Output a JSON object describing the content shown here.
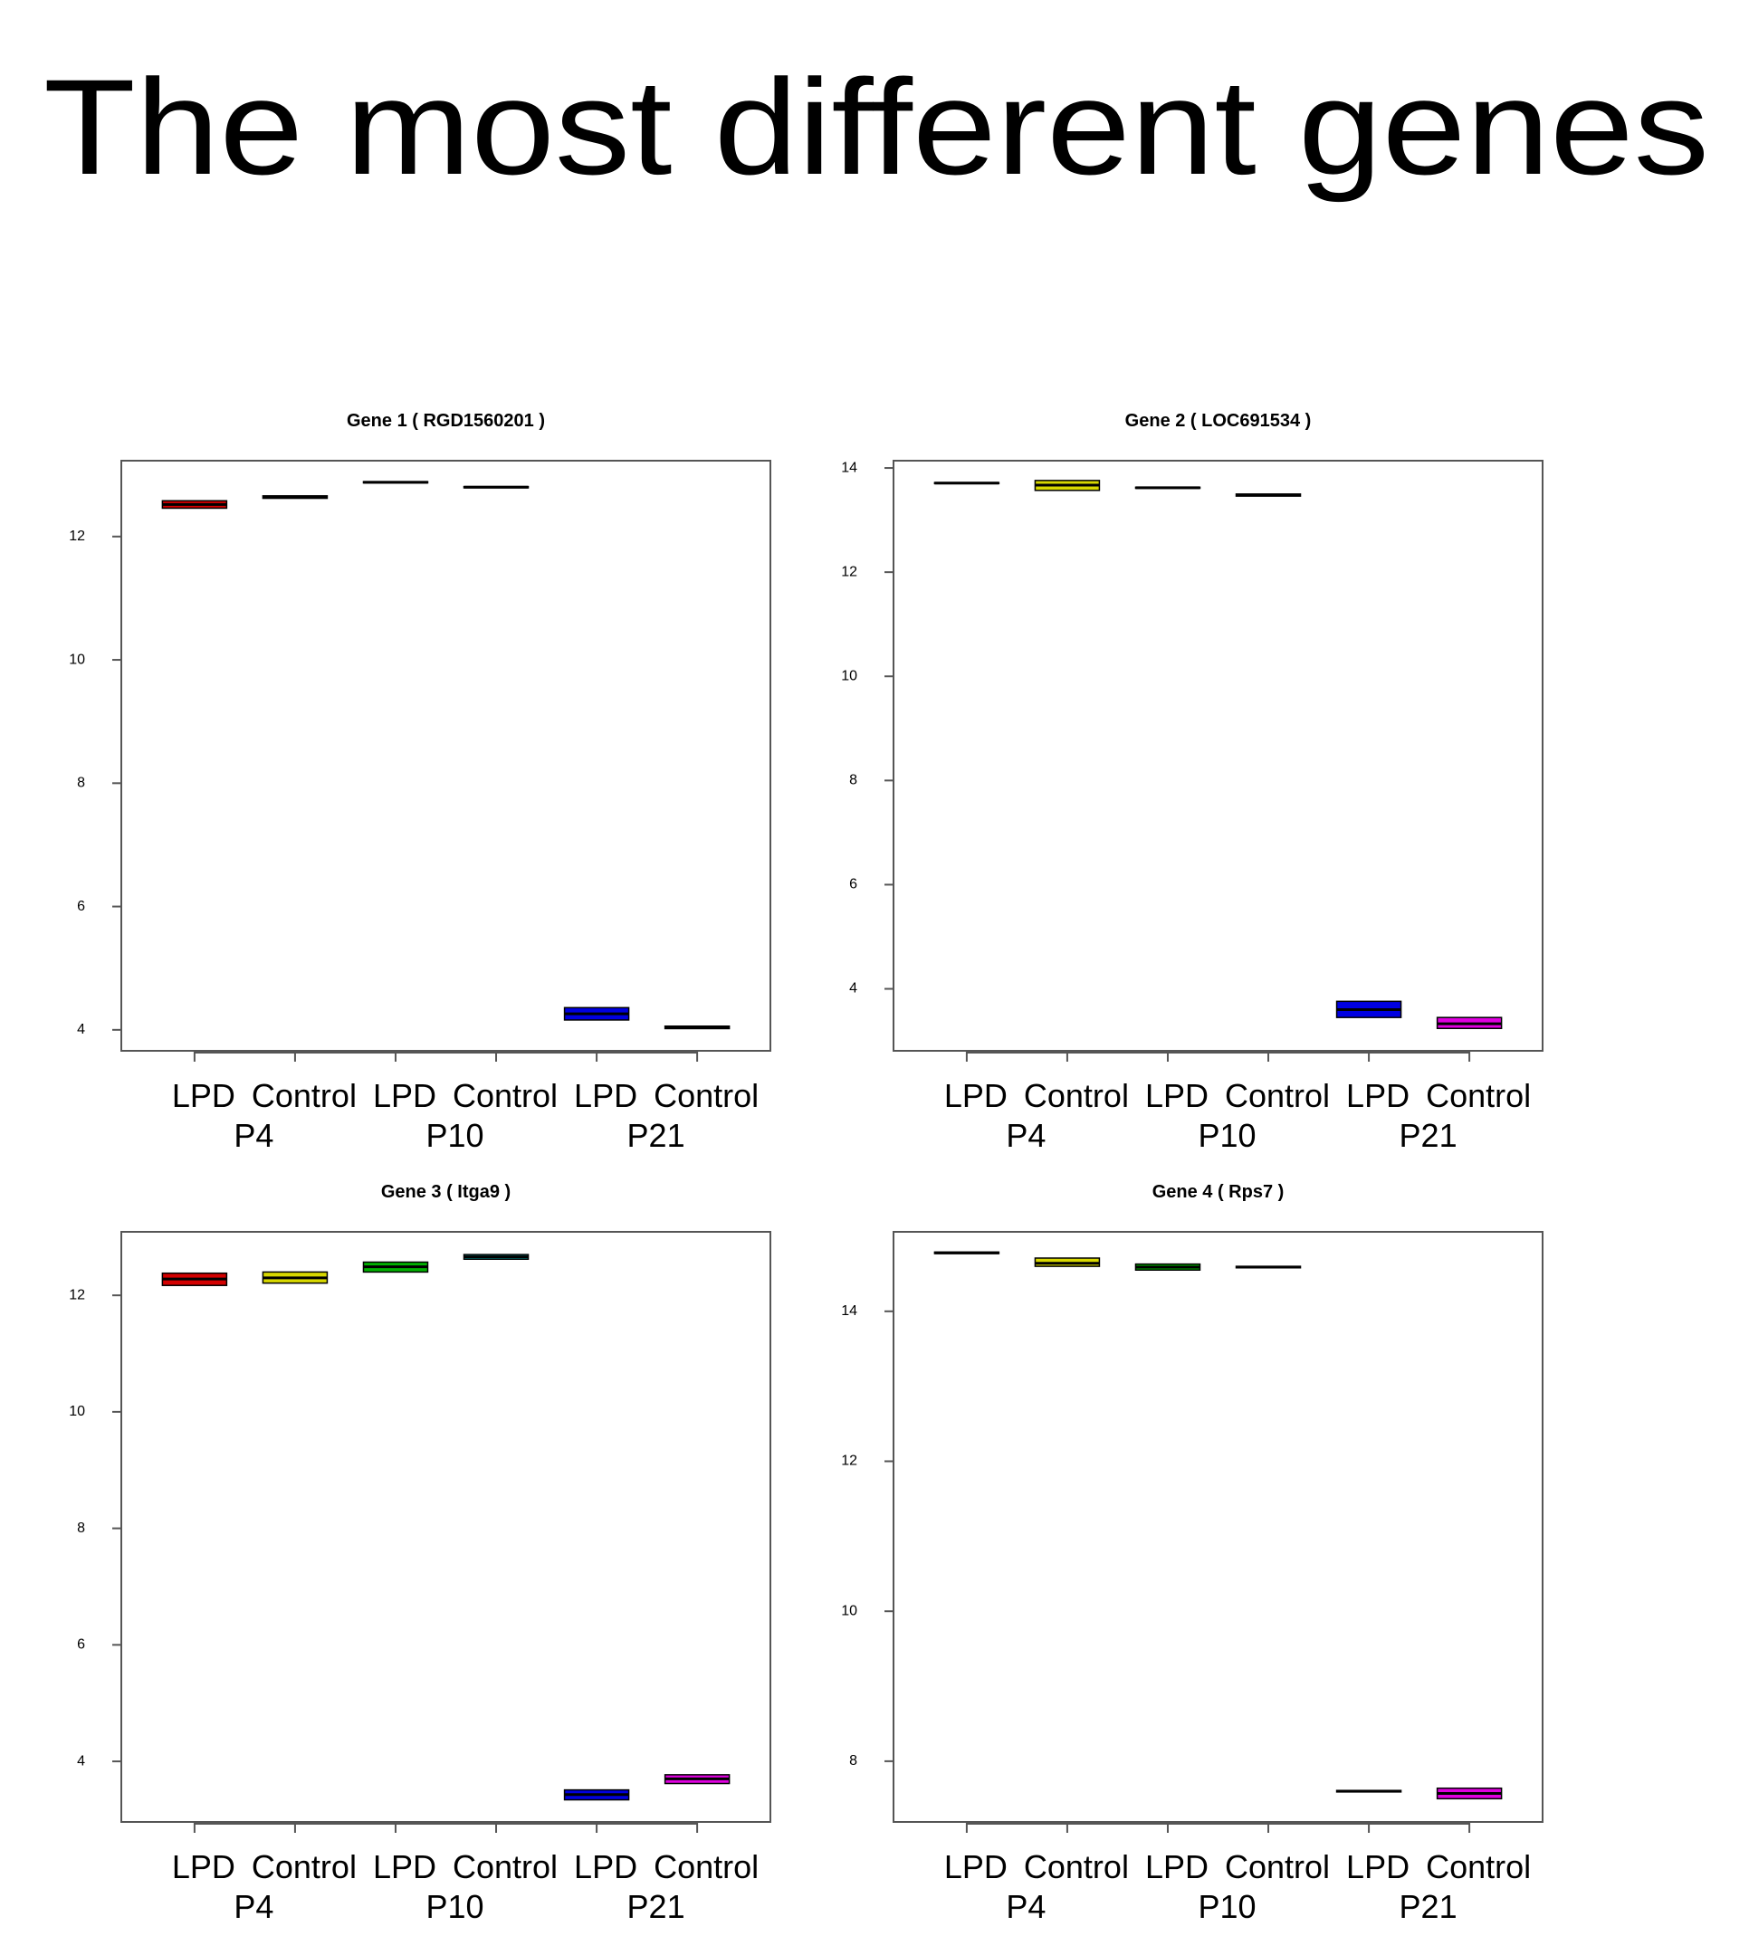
{
  "title": "The most different genes",
  "chart_data": [
    {
      "type": "box",
      "title": "Gene 1 ( RGD1560201 )",
      "categories": [
        "LPD",
        "Control",
        "LPD",
        "Control",
        "LPD",
        "Control"
      ],
      "groups": [
        "P4",
        "P10",
        "P21"
      ],
      "q1": [
        12.46,
        12.62,
        12.87,
        12.79,
        4.16,
        4.02
      ],
      "median": [
        12.52,
        12.64,
        12.88,
        12.8,
        4.26,
        4.04
      ],
      "q3": [
        12.58,
        12.66,
        12.89,
        12.81,
        4.36,
        4.06
      ],
      "colors": [
        "#d40000",
        "#d8d800",
        "#00b000",
        "#00c8c8",
        "#0000e0",
        "#e000e0"
      ],
      "ylim": [
        3.66,
        13.23
      ],
      "yticks": [
        4,
        6,
        8,
        10,
        12
      ]
    },
    {
      "type": "box",
      "title": "Gene 2 ( LOC691534 )",
      "categories": [
        "LPD",
        "Control",
        "LPD",
        "Control",
        "LPD",
        "Control"
      ],
      "groups": [
        "P4",
        "P10",
        "P21"
      ],
      "q1": [
        13.7,
        13.57,
        13.61,
        13.46,
        3.45,
        3.24
      ],
      "median": [
        13.71,
        13.67,
        13.62,
        13.48,
        3.6,
        3.33
      ],
      "q3": [
        13.72,
        13.76,
        13.63,
        13.5,
        3.76,
        3.45
      ],
      "colors": [
        "#d40000",
        "#d8d800",
        "#00b000",
        "#00c8c8",
        "#0000e0",
        "#e000e0"
      ],
      "ylim": [
        2.81,
        14.14
      ],
      "yticks": [
        4,
        6,
        8,
        10,
        12,
        14
      ]
    },
    {
      "type": "box",
      "title": "Gene 3 ( Itga9 )",
      "categories": [
        "LPD",
        "Control",
        "LPD",
        "Control",
        "LPD",
        "Control"
      ],
      "groups": [
        "P4",
        "P10",
        "P21"
      ],
      "q1": [
        12.17,
        12.21,
        12.4,
        12.62,
        3.34,
        3.62
      ],
      "median": [
        12.28,
        12.3,
        12.49,
        12.66,
        3.43,
        3.7
      ],
      "q3": [
        12.38,
        12.4,
        12.57,
        12.7,
        3.51,
        3.77
      ],
      "colors": [
        "#d40000",
        "#d8d800",
        "#00b000",
        "#00c8c8",
        "#0000e0",
        "#e000e0"
      ],
      "ylim": [
        2.96,
        13.09
      ],
      "yticks": [
        4,
        6,
        8,
        10,
        12
      ]
    },
    {
      "type": "box",
      "title": "Gene 4 ( Rps7 )",
      "categories": [
        "LPD",
        "Control",
        "LPD",
        "Control",
        "LPD",
        "Control"
      ],
      "groups": [
        "P4",
        "P10",
        "P21"
      ],
      "q1": [
        14.77,
        14.6,
        14.55,
        14.58,
        7.59,
        7.5
      ],
      "median": [
        14.78,
        14.64,
        14.59,
        14.59,
        7.6,
        7.57
      ],
      "q3": [
        14.79,
        14.71,
        14.63,
        14.6,
        7.61,
        7.64
      ],
      "colors": [
        "#d40000",
        "#d8d800",
        "#00b000",
        "#00c8c8",
        "#0000e0",
        "#e000e0"
      ],
      "ylim": [
        7.19,
        15.06
      ],
      "yticks": [
        8,
        10,
        12,
        14
      ]
    }
  ]
}
